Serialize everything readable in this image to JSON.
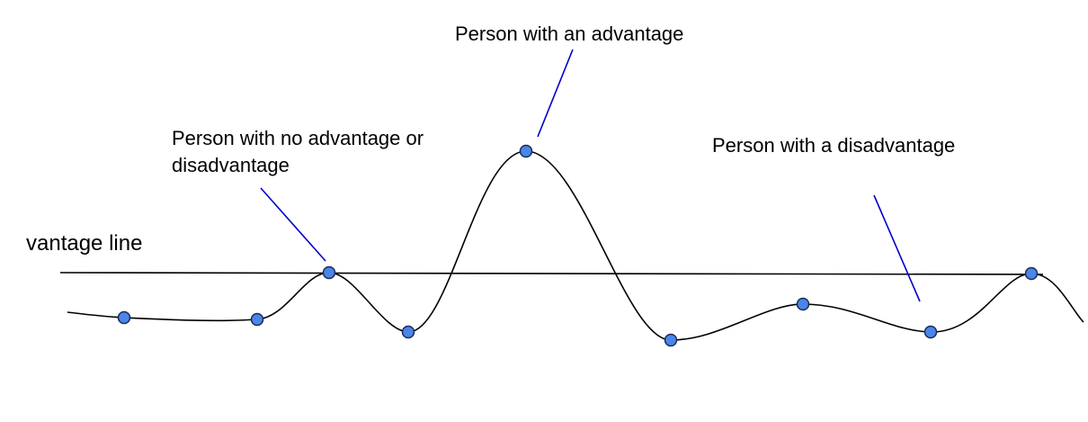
{
  "labels": {
    "vantage_line": "vantage line",
    "advantage": "Person with an advantage",
    "neutral_line1": "Person with no advantage or",
    "neutral_line2": "disadvantage",
    "disadvantage": "Person with a disadvantage"
  },
  "colors": {
    "curve": "#000000",
    "vantage_line": "#000000",
    "pointer": "#0000cc",
    "point_fill": "#4a86e8",
    "point_stroke": "#1a2a55"
  }
}
